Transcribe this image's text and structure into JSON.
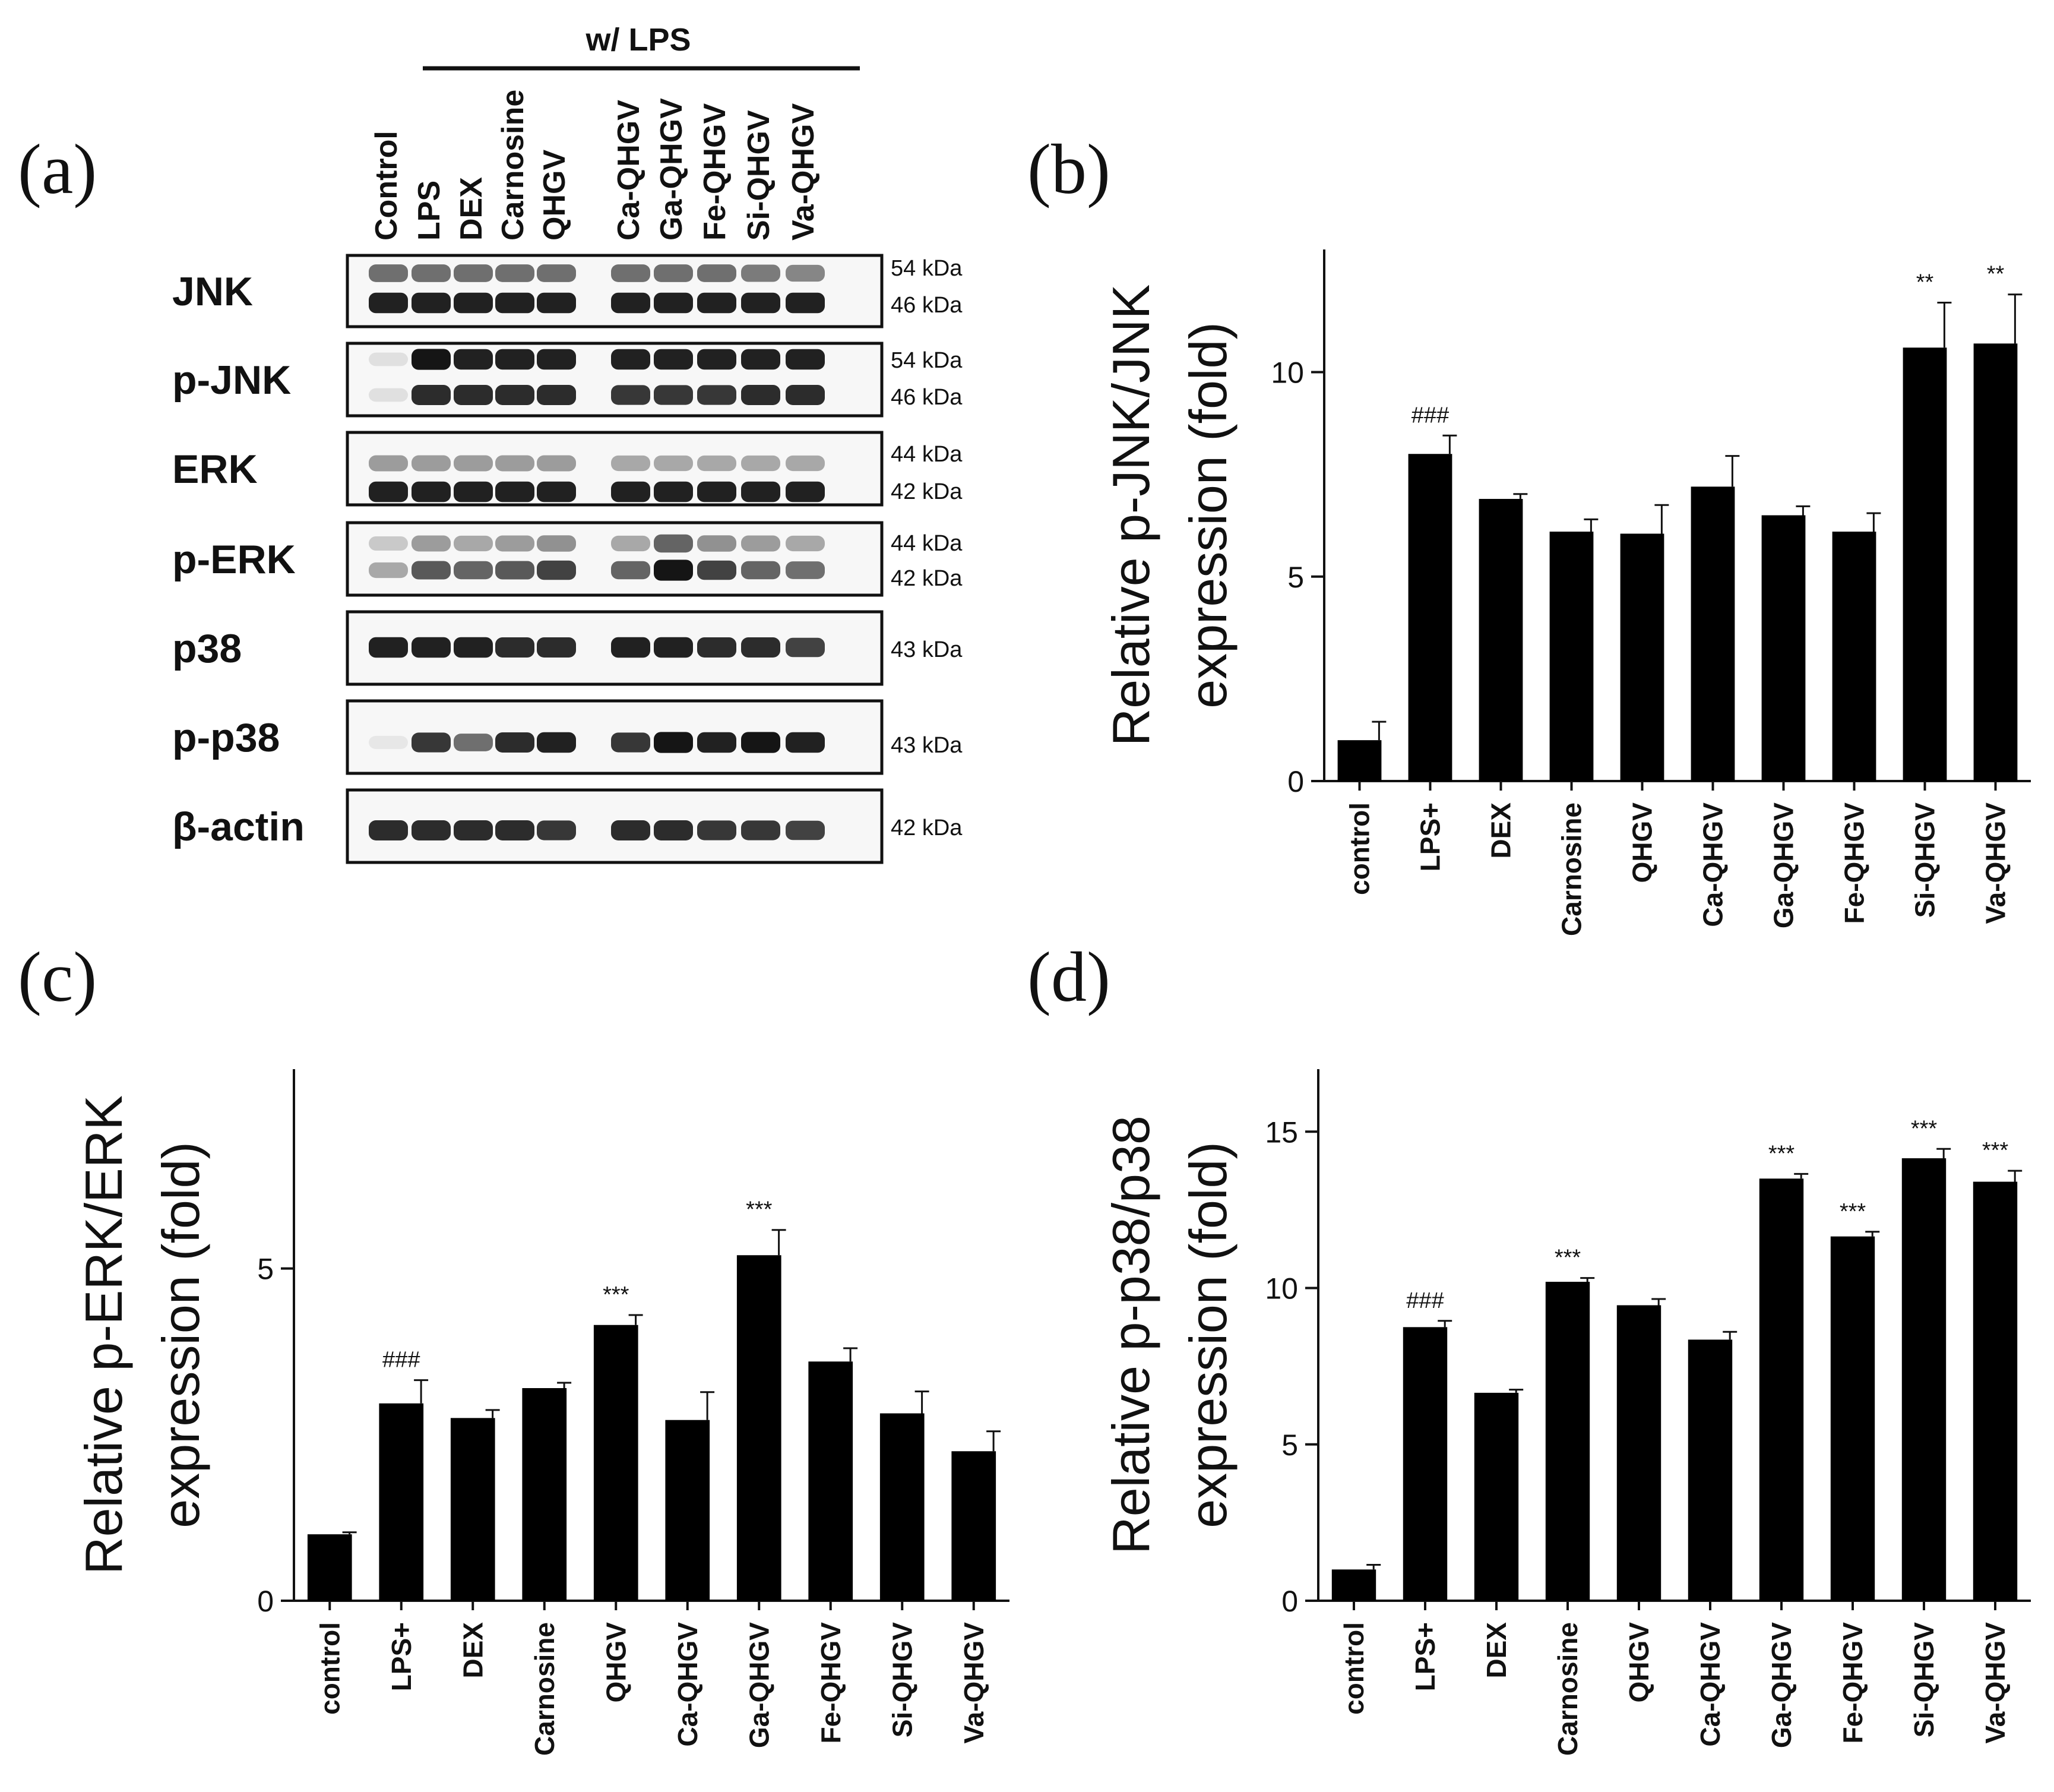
{
  "panel_a": {
    "letter": "(a)",
    "treatment_header": "w/ LPS",
    "lanes": [
      "Control",
      "LPS",
      "DEX",
      "Carnosine",
      "QHGV",
      "Ca-QHGV",
      "Ga-QHGV",
      "Fe-QHGV",
      "Si-QHGV",
      "Va-QHGV"
    ],
    "blots": [
      {
        "label": "JNK",
        "kda": [
          "54 kDa",
          "46 kDa"
        ],
        "band_intensity": [
          [
            0.55,
            0.9
          ],
          [
            0.55,
            0.9
          ],
          [
            0.55,
            0.9
          ],
          [
            0.55,
            0.9
          ],
          [
            0.55,
            0.9
          ],
          [
            0.55,
            0.9
          ],
          [
            0.55,
            0.9
          ],
          [
            0.55,
            0.9
          ],
          [
            0.5,
            0.9
          ],
          [
            0.45,
            0.9
          ]
        ]
      },
      {
        "label": "p-JNK",
        "kda": [
          "54 kDa",
          "46 kDa"
        ],
        "band_intensity": [
          [
            0.05,
            0.05
          ],
          [
            0.95,
            0.85
          ],
          [
            0.9,
            0.85
          ],
          [
            0.9,
            0.85
          ],
          [
            0.9,
            0.85
          ],
          [
            0.9,
            0.8
          ],
          [
            0.9,
            0.8
          ],
          [
            0.9,
            0.8
          ],
          [
            0.9,
            0.85
          ],
          [
            0.9,
            0.85
          ]
        ]
      },
      {
        "label": "ERK",
        "kda": [
          "44 kDa",
          "42 kDa"
        ],
        "band_intensity": [
          [
            0.35,
            0.9
          ],
          [
            0.35,
            0.9
          ],
          [
            0.35,
            0.9
          ],
          [
            0.35,
            0.9
          ],
          [
            0.35,
            0.9
          ],
          [
            0.3,
            0.9
          ],
          [
            0.3,
            0.9
          ],
          [
            0.3,
            0.9
          ],
          [
            0.3,
            0.9
          ],
          [
            0.3,
            0.9
          ]
        ]
      },
      {
        "label": "p-ERK",
        "kda": [
          "44 kDa",
          "42 kDa"
        ],
        "band_intensity": [
          [
            0.15,
            0.3
          ],
          [
            0.35,
            0.65
          ],
          [
            0.3,
            0.6
          ],
          [
            0.35,
            0.65
          ],
          [
            0.4,
            0.75
          ],
          [
            0.3,
            0.6
          ],
          [
            0.6,
            0.95
          ],
          [
            0.4,
            0.75
          ],
          [
            0.35,
            0.6
          ],
          [
            0.3,
            0.55
          ]
        ]
      },
      {
        "label": "p38",
        "kda": [
          "43 kDa"
        ],
        "band_intensity": [
          [
            0.9
          ],
          [
            0.9
          ],
          [
            0.9
          ],
          [
            0.85
          ],
          [
            0.85
          ],
          [
            0.9
          ],
          [
            0.9
          ],
          [
            0.85
          ],
          [
            0.85
          ],
          [
            0.75
          ]
        ]
      },
      {
        "label": "p-p38",
        "kda": [
          "43 kDa"
        ],
        "band_intensity": [
          [
            0.02
          ],
          [
            0.8
          ],
          [
            0.55
          ],
          [
            0.85
          ],
          [
            0.9
          ],
          [
            0.8
          ],
          [
            0.95
          ],
          [
            0.9
          ],
          [
            0.95
          ],
          [
            0.9
          ]
        ]
      },
      {
        "label": "β-actin",
        "kda": [
          "42 kDa"
        ],
        "band_intensity": [
          [
            0.85
          ],
          [
            0.85
          ],
          [
            0.85
          ],
          [
            0.85
          ],
          [
            0.8
          ],
          [
            0.85
          ],
          [
            0.85
          ],
          [
            0.8
          ],
          [
            0.8
          ],
          [
            0.75
          ]
        ]
      }
    ]
  },
  "chart_data": [
    {
      "panel": "(b)",
      "type": "bar",
      "categories": [
        "control",
        "LPS+",
        "DEX",
        "Carnosine",
        "QHGV",
        "Ca-QHGV",
        "Ga-QHGV",
        "Fe-QHGV",
        "Si-QHGV",
        "Va-QHGV"
      ],
      "values": [
        1.0,
        8.0,
        6.9,
        6.1,
        6.05,
        7.2,
        6.5,
        6.1,
        10.6,
        10.7
      ],
      "errors": [
        0.45,
        0.45,
        0.12,
        0.3,
        0.7,
        0.75,
        0.22,
        0.45,
        1.1,
        1.2
      ],
      "significance": [
        "",
        "###",
        "",
        "",
        "",
        "",
        "",
        "",
        "**",
        "**"
      ],
      "ylabel": [
        "Relative p-JNK/JNK",
        "expression (fold)"
      ],
      "yticks": [
        0,
        5,
        10
      ],
      "ylim": [
        0,
        13
      ]
    },
    {
      "panel": "(c)",
      "type": "bar",
      "categories": [
        "control",
        "LPS+",
        "DEX",
        "Carnosine",
        "QHGV",
        "Ca-QHGV",
        "Ga-QHGV",
        "Fe-QHGV",
        "Si-QHGV",
        "Va-QHGV"
      ],
      "values": [
        1.0,
        2.97,
        2.75,
        3.2,
        4.15,
        2.72,
        5.2,
        3.6,
        2.82,
        2.25
      ],
      "errors": [
        0.03,
        0.35,
        0.12,
        0.08,
        0.15,
        0.42,
        0.38,
        0.2,
        0.33,
        0.3
      ],
      "significance": [
        "",
        "###",
        "",
        "",
        "***",
        "",
        "***",
        "",
        "",
        ""
      ],
      "ylabel": [
        "Relative p-ERK/ERK",
        "expression (fold)"
      ],
      "yticks": [
        0,
        5
      ],
      "ylim": [
        0,
        8
      ]
    },
    {
      "panel": "(d)",
      "type": "bar",
      "categories": [
        "control",
        "LPS+",
        "DEX",
        "Carnosine",
        "QHGV",
        "Ca-QHGV",
        "Ga-QHGV",
        "Fe-QHGV",
        "Si-QHGV",
        "Va-QHGV"
      ],
      "values": [
        1.0,
        8.75,
        6.65,
        10.2,
        9.45,
        8.35,
        13.5,
        11.65,
        14.15,
        13.4
      ],
      "errors": [
        0.15,
        0.2,
        0.1,
        0.12,
        0.2,
        0.25,
        0.15,
        0.15,
        0.3,
        0.35
      ],
      "significance": [
        "",
        "###",
        "",
        "***",
        "",
        "",
        "***",
        "***",
        "***",
        "***"
      ],
      "ylabel": [
        "Relative p-p38/p38",
        "expression (fold)"
      ],
      "yticks": [
        0,
        5,
        10,
        15
      ],
      "ylim": [
        0,
        17
      ]
    }
  ]
}
